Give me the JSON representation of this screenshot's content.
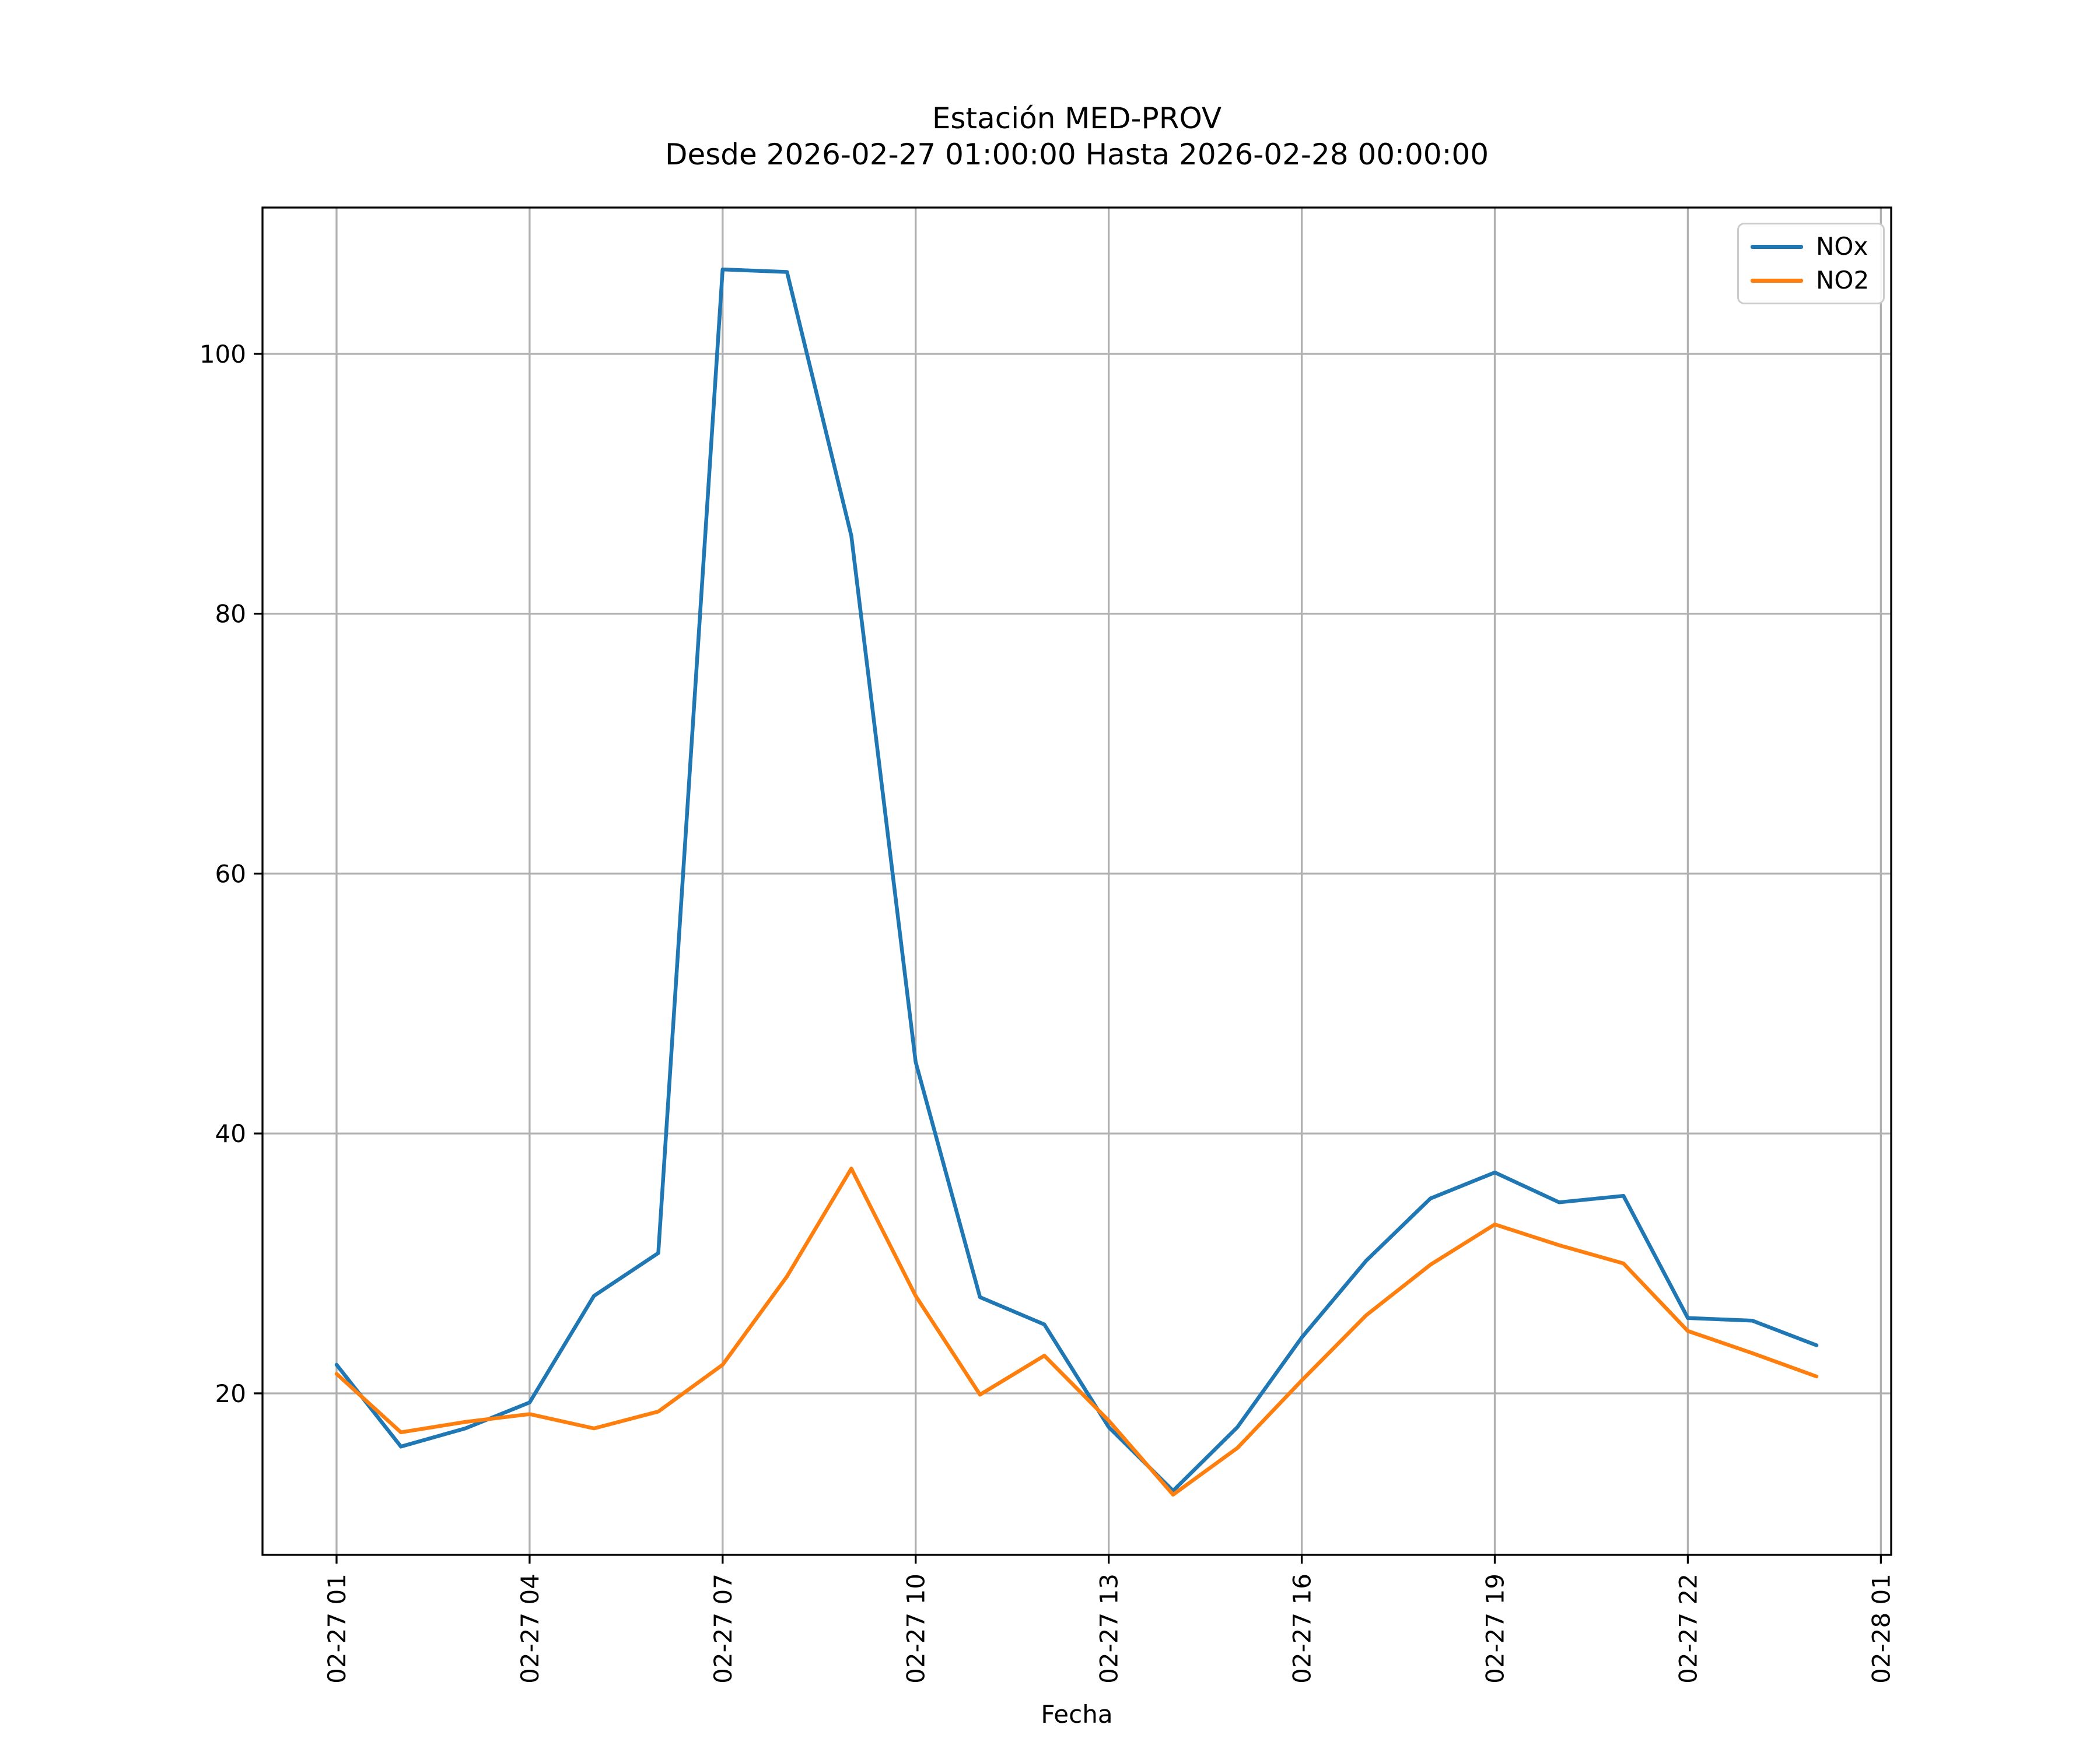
{
  "figure": {
    "title_line1": "Estación MED-PROV",
    "title_line2": "Desde 2026-02-27 01:00:00 Hasta 2026-02-28 00:00:00",
    "xlabel": "Fecha"
  },
  "chart_data": {
    "type": "line",
    "title": "Estación MED-PROV\nDesde 2026-02-27 01:00:00 Hasta 2026-02-28 00:00:00",
    "xlabel": "Fecha",
    "ylabel": "",
    "grid": true,
    "grid_color": "#b0b0b0",
    "legend_position": "upper right",
    "x_hours": [
      1,
      2,
      3,
      4,
      5,
      6,
      7,
      8,
      9,
      10,
      11,
      12,
      13,
      14,
      15,
      16,
      17,
      18,
      19,
      20,
      21,
      22,
      23,
      24
    ],
    "series": [
      {
        "name": "NOx",
        "color": "#1f77b4",
        "values": [
          22.2,
          15.9,
          17.3,
          19.3,
          27.5,
          30.8,
          106.5,
          106.3,
          86.0,
          45.5,
          27.4,
          25.3,
          17.4,
          12.5,
          17.4,
          24.3,
          30.2,
          35.0,
          37.0,
          34.7,
          35.2,
          25.8,
          25.6,
          23.7
        ]
      },
      {
        "name": "NO2",
        "color": "#ff7f0e",
        "values": [
          21.5,
          17.0,
          17.8,
          18.4,
          17.3,
          18.6,
          22.2,
          29.0,
          37.3,
          27.5,
          19.9,
          22.9,
          17.9,
          12.2,
          15.8,
          21.0,
          26.0,
          29.9,
          33.0,
          31.4,
          30.0,
          24.8,
          23.1,
          21.3
        ]
      }
    ],
    "xticks": [
      {
        "hour": 1,
        "label": "02-27 01"
      },
      {
        "hour": 4,
        "label": "02-27 04"
      },
      {
        "hour": 7,
        "label": "02-27 07"
      },
      {
        "hour": 10,
        "label": "02-27 10"
      },
      {
        "hour": 13,
        "label": "02-27 13"
      },
      {
        "hour": 16,
        "label": "02-27 16"
      },
      {
        "hour": 19,
        "label": "02-27 19"
      },
      {
        "hour": 22,
        "label": "02-27 22"
      },
      {
        "hour": 25,
        "label": "02-28 01"
      }
    ],
    "yticks": [
      20,
      40,
      60,
      80,
      100
    ],
    "xlim_hours": [
      -0.151,
      25.16
    ],
    "ylim": [
      7.57,
      111.26
    ]
  }
}
